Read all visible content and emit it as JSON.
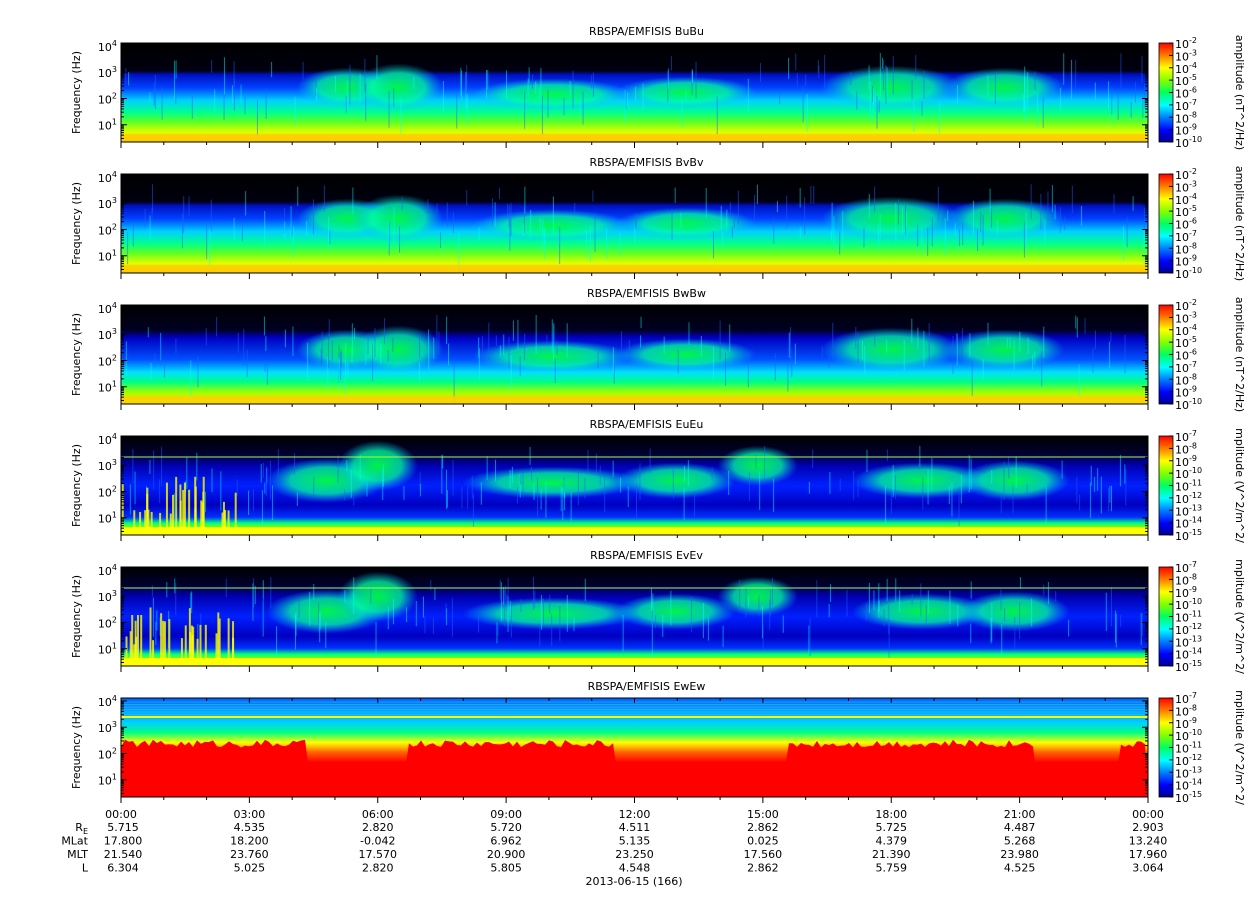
{
  "chart_data": {
    "type": "heatmap",
    "date_label": "2013-06-15 (166)",
    "x": {
      "ticks": [
        "00:00",
        "03:00",
        "06:00",
        "09:00",
        "12:00",
        "15:00",
        "18:00",
        "21:00",
        "00:00"
      ]
    },
    "panels": [
      {
        "title": "RBSPA/EMFISIS  BuBu",
        "ylabel": "Frequency (Hz)",
        "yticks": [
          "10",
          "10",
          "10",
          "10"
        ],
        "yexp": [
          "1",
          "2",
          "3",
          "4"
        ],
        "cbar_label": "amplitude (nT^2/Hz)",
        "cbar_ticks": [
          "10",
          "10",
          "10",
          "10",
          "10",
          "10",
          "10",
          "10",
          "10"
        ],
        "cbar_exp": [
          "-2",
          "-3",
          "-4",
          "-5",
          "-6",
          "-7",
          "-8",
          "-9",
          "-10"
        ],
        "kind": "B"
      },
      {
        "title": "RBSPA/EMFISIS  BvBv",
        "ylabel": "Frequency (Hz)",
        "yticks": [
          "10",
          "10",
          "10",
          "10"
        ],
        "yexp": [
          "1",
          "2",
          "3",
          "4"
        ],
        "cbar_label": "amplitude (nT^2/Hz)",
        "cbar_ticks": [
          "10",
          "10",
          "10",
          "10",
          "10",
          "10",
          "10",
          "10",
          "10"
        ],
        "cbar_exp": [
          "-2",
          "-3",
          "-4",
          "-5",
          "-6",
          "-7",
          "-8",
          "-9",
          "-10"
        ],
        "kind": "B"
      },
      {
        "title": "RBSPA/EMFISIS  BwBw",
        "ylabel": "Frequency (Hz)",
        "yticks": [
          "10",
          "10",
          "10",
          "10"
        ],
        "yexp": [
          "1",
          "2",
          "3",
          "4"
        ],
        "cbar_label": "amplitude (nT^2/Hz)",
        "cbar_ticks": [
          "10",
          "10",
          "10",
          "10",
          "10",
          "10",
          "10",
          "10",
          "10"
        ],
        "cbar_exp": [
          "-2",
          "-3",
          "-4",
          "-5",
          "-6",
          "-7",
          "-8",
          "-9",
          "-10"
        ],
        "kind": "Bw"
      },
      {
        "title": "RBSPA/EMFISIS  EuEu",
        "ylabel": "Frequency (Hz)",
        "yticks": [
          "10",
          "10",
          "10",
          "10"
        ],
        "yexp": [
          "1",
          "2",
          "3",
          "4"
        ],
        "cbar_label": "mplitude (V^2/m^2/",
        "cbar_ticks": [
          "10",
          "10",
          "10",
          "10",
          "10",
          "10",
          "10",
          "10",
          "10"
        ],
        "cbar_exp": [
          "-7",
          "-8",
          "-9",
          "-10",
          "-11",
          "-12",
          "-13",
          "-14",
          "-15"
        ],
        "kind": "E"
      },
      {
        "title": "RBSPA/EMFISIS  EvEv",
        "ylabel": "Frequency (Hz)",
        "yticks": [
          "10",
          "10",
          "10",
          "10"
        ],
        "yexp": [
          "1",
          "2",
          "3",
          "4"
        ],
        "cbar_label": "mplitude (V^2/m^2/",
        "cbar_ticks": [
          "10",
          "10",
          "10",
          "10",
          "10",
          "10",
          "10",
          "10",
          "10"
        ],
        "cbar_exp": [
          "-7",
          "-8",
          "-9",
          "-10",
          "-11",
          "-12",
          "-13",
          "-14",
          "-15"
        ],
        "kind": "E"
      },
      {
        "title": "RBSPA/EMFISIS  EwEw",
        "ylabel": "Frequency (Hz)",
        "yticks": [
          "10",
          "10",
          "10",
          "10"
        ],
        "yexp": [
          "1",
          "2",
          "3",
          "4"
        ],
        "cbar_label": "mplitude (V^2/m^2/",
        "cbar_ticks": [
          "10",
          "10",
          "10",
          "10",
          "10",
          "10",
          "10",
          "10",
          "10"
        ],
        "cbar_exp": [
          "-7",
          "-8",
          "-9",
          "-10",
          "-11",
          "-12",
          "-13",
          "-14",
          "-15"
        ],
        "kind": "Ew"
      }
    ],
    "ephemeris": [
      {
        "label": "R",
        "sub": "E",
        "values": [
          "5.715",
          "4.535",
          "2.820",
          "5.720",
          "4.511",
          "2.862",
          "5.725",
          "4.487",
          "2.903"
        ]
      },
      {
        "label": "MLat",
        "sub": "",
        "values": [
          "17.800",
          "18.200",
          "-0.042",
          "6.962",
          "5.135",
          "0.025",
          "4.379",
          "5.268",
          "13.240"
        ]
      },
      {
        "label": "MLT",
        "sub": "",
        "values": [
          "21.540",
          "23.760",
          "17.570",
          "20.900",
          "23.250",
          "17.560",
          "21.390",
          "23.980",
          "17.960"
        ]
      },
      {
        "label": "L",
        "sub": "",
        "values": [
          "6.304",
          "5.025",
          "2.820",
          "5.805",
          "4.548",
          "2.862",
          "5.759",
          "4.525",
          "3.064"
        ]
      }
    ]
  }
}
